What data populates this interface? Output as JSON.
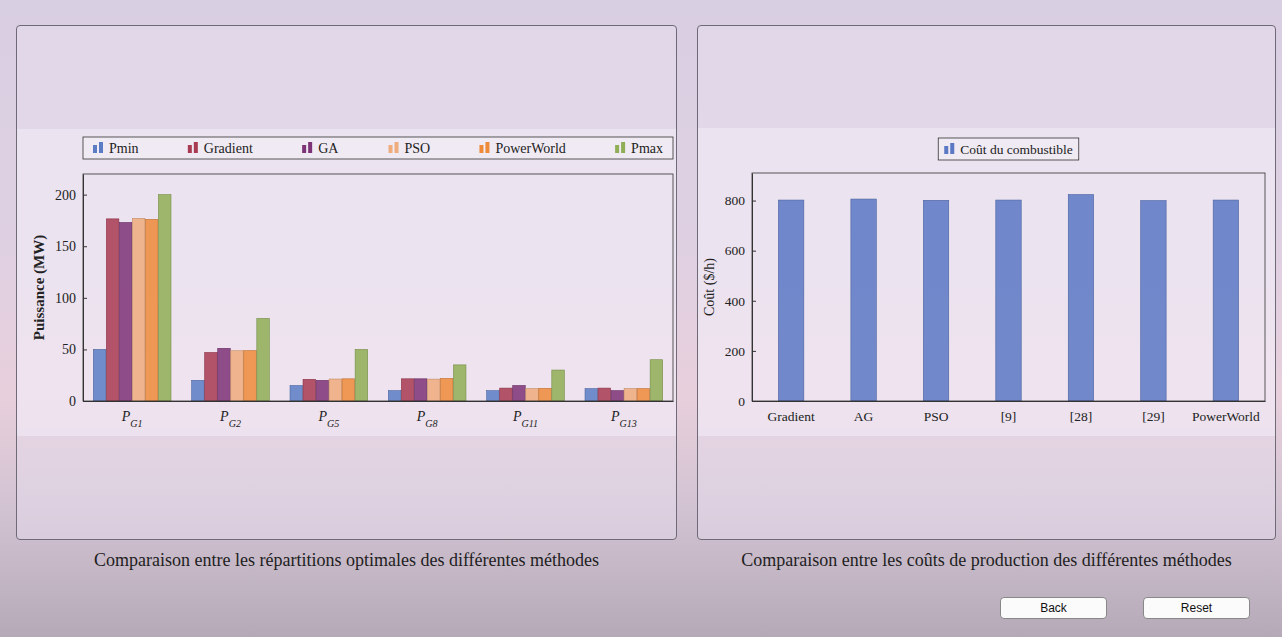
{
  "chart_data": [
    {
      "type": "bar",
      "title": "Comparaison entre les répartitions optimales des différentes méthodes",
      "y_label": "Puissance (MW)",
      "categories": [
        "PG1",
        "PG2",
        "PG5",
        "PG8",
        "PG11",
        "PG13"
      ],
      "series": [
        {
          "name": "Pmin",
          "color": "#5a7cc4",
          "values": [
            50,
            20,
            15,
            10,
            10,
            12
          ]
        },
        {
          "name": "Gradient",
          "color": "#a83a52",
          "values": [
            176.5,
            47,
            21,
            21.5,
            12.5,
            12.5
          ]
        },
        {
          "name": "GA",
          "color": "#7d3377",
          "values": [
            173,
            51,
            20,
            21.5,
            15,
            10
          ]
        },
        {
          "name": "PSO",
          "color": "#efac7c",
          "values": [
            177,
            48.7,
            21.3,
            21.2,
            12,
            12
          ]
        },
        {
          "name": "PowerWorld",
          "color": "#ee8a38",
          "values": [
            176,
            48.8,
            21.5,
            21.9,
            12.3,
            12
          ]
        },
        {
          "name": "Pmax",
          "color": "#8fae55",
          "values": [
            200,
            80,
            50,
            35,
            30,
            40
          ]
        }
      ],
      "ylim": [
        0,
        220
      ],
      "yticks": [
        0,
        50,
        100,
        150,
        200
      ],
      "grid": false,
      "legend": "top"
    },
    {
      "type": "bar",
      "title": "Comparaison entre les coûts de production des différentes méthodes",
      "y_label": "Coût ($/h)",
      "categories": [
        "Gradient",
        "AG",
        "PSO",
        "[9]",
        "[28]",
        "[29]",
        "PowerWorld"
      ],
      "series": [
        {
          "name": "Coût du combustible",
          "color": "#5a78c4",
          "values": [
            802,
            806,
            801,
            802,
            824,
            800,
            802
          ]
        }
      ],
      "ylim": [
        0,
        910
      ],
      "yticks": [
        0,
        200,
        400,
        600,
        800
      ],
      "grid": false,
      "legend": "top"
    }
  ],
  "buttons": [
    "Back",
    "Reset"
  ]
}
